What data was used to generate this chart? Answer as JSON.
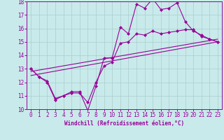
{
  "xlabel": "Windchill (Refroidissement éolien,°C)",
  "x_values": [
    0,
    1,
    2,
    3,
    4,
    5,
    6,
    7,
    8,
    9,
    10,
    11,
    12,
    13,
    14,
    15,
    16,
    17,
    18,
    19,
    20,
    21,
    22,
    23
  ],
  "line1": [
    13.0,
    12.4,
    12.0,
    10.7,
    11.0,
    11.3,
    11.3,
    9.9,
    11.7,
    13.8,
    13.8,
    16.1,
    15.6,
    17.8,
    17.5,
    18.2,
    17.4,
    17.5,
    17.9,
    16.5,
    15.8,
    15.5,
    15.2,
    15.0
  ],
  "line2": [
    13.0,
    12.4,
    12.1,
    10.8,
    11.0,
    11.2,
    11.2,
    10.5,
    12.0,
    13.2,
    13.5,
    14.9,
    15.0,
    15.6,
    15.5,
    15.8,
    15.6,
    15.7,
    15.8,
    15.9,
    15.9,
    15.4,
    15.2,
    15.0
  ],
  "line3_x": [
    0,
    23
  ],
  "line3_y": [
    12.5,
    15.0
  ],
  "line4_x": [
    0,
    23
  ],
  "line4_y": [
    12.8,
    15.2
  ],
  "color": "#990099",
  "bg_color": "#c8eaea",
  "grid_color": "#aacccc",
  "ylim": [
    10,
    18
  ],
  "xlim": [
    -0.5,
    23.5
  ],
  "yticks": [
    10,
    11,
    12,
    13,
    14,
    15,
    16,
    17,
    18
  ],
  "xticks": [
    0,
    1,
    2,
    3,
    4,
    5,
    6,
    7,
    8,
    9,
    10,
    11,
    12,
    13,
    14,
    15,
    16,
    17,
    18,
    19,
    20,
    21,
    22,
    23
  ],
  "marker": "D",
  "markersize": 2.0,
  "linewidth": 0.8,
  "tick_fontsize": 5.5,
  "xlabel_fontsize": 5.5
}
